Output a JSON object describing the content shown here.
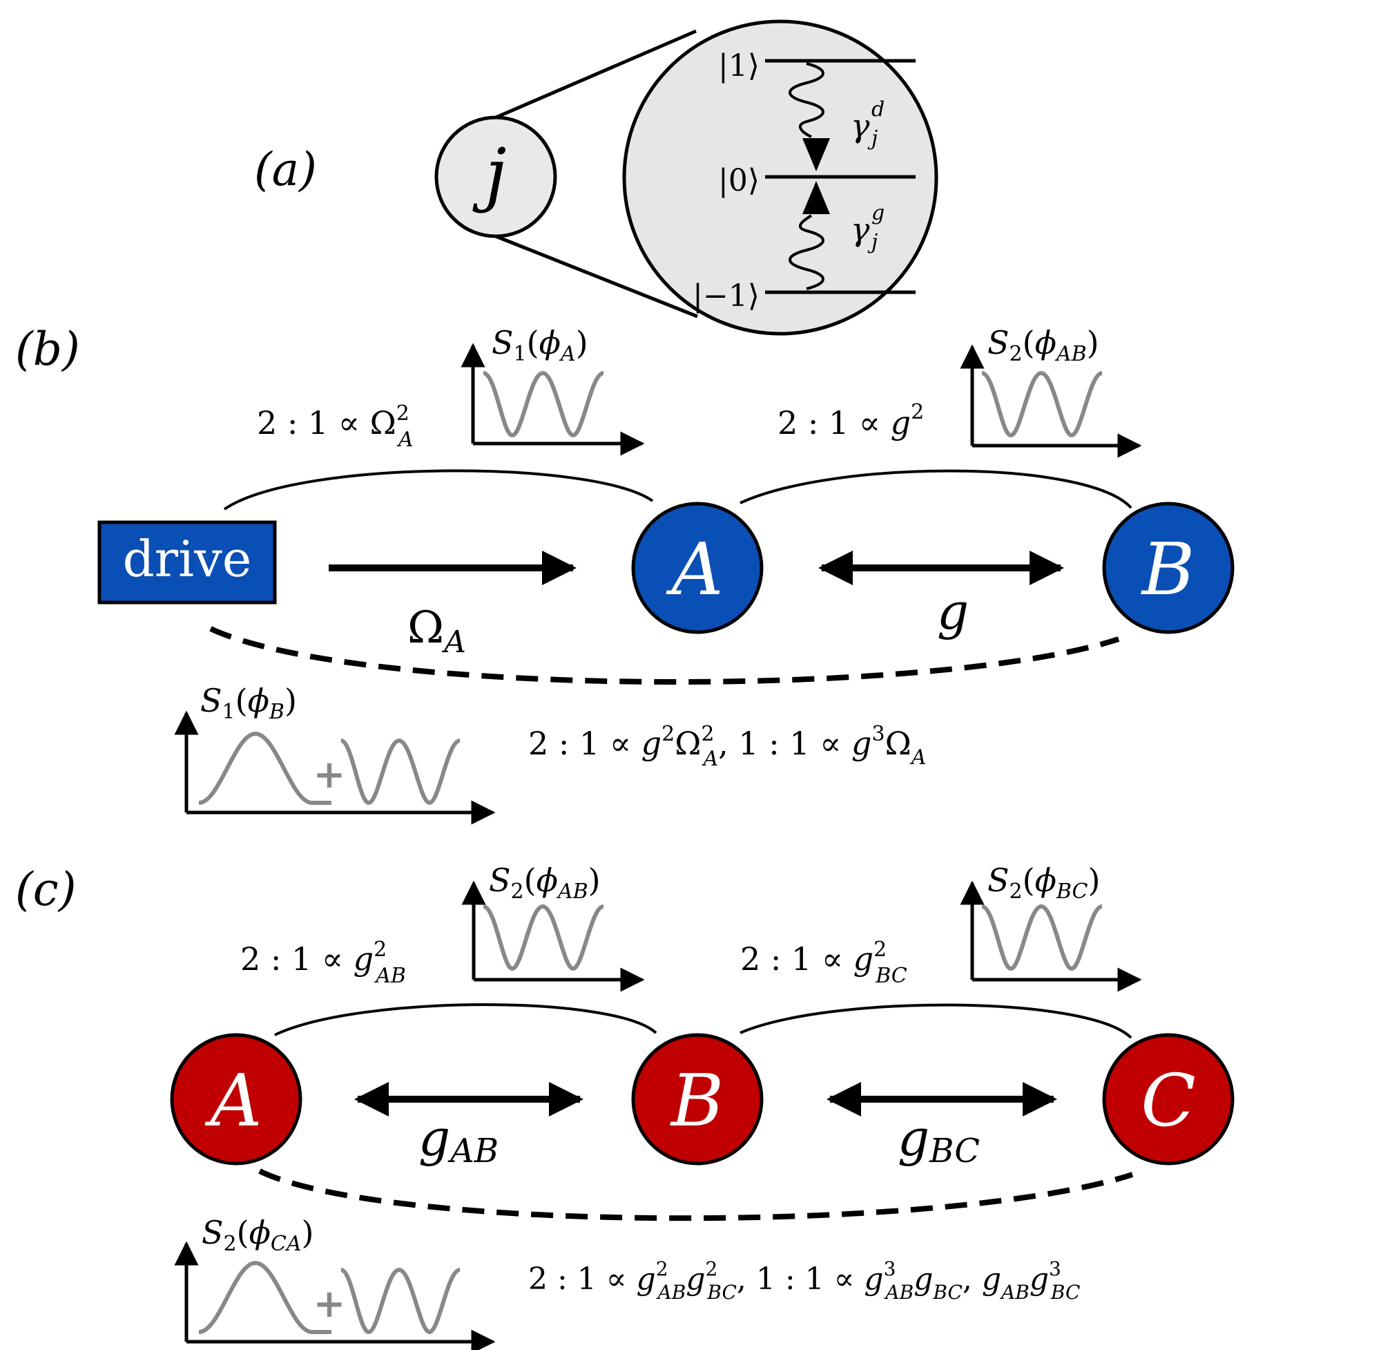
{
  "panel_a": {
    "label": "(a)",
    "site": "j",
    "levels": {
      "top": "|1⟩",
      "mid": "|0⟩",
      "bot": "|−1⟩"
    },
    "decay": {
      "base": "γ",
      "upper_sup": "d",
      "lower_sup": "g",
      "sub": "j"
    }
  },
  "panel_b": {
    "label": "(b)",
    "drive": "drive",
    "node_a": "A",
    "node_b": "B",
    "coupling_omega": {
      "base": "Ω",
      "sub": "A"
    },
    "coupling_g": "g",
    "arc1": {
      "ratio": "2 : 1 ∝ ",
      "base": "Ω",
      "sup": "2",
      "sub": "A"
    },
    "arc2": {
      "ratio": "2 : 1 ∝ ",
      "base": "g",
      "sup": "2"
    },
    "plot1": {
      "s": "S",
      "s_sub": "1",
      "arg": "ϕ",
      "arg_sub": "A"
    },
    "plot2": {
      "s": "S",
      "s_sub": "2",
      "arg": "ϕ",
      "arg_sub": "AB"
    },
    "plot3": {
      "s": "S",
      "s_sub": "1",
      "arg": "ϕ",
      "arg_sub": "B"
    },
    "bottom_text": {
      "p1": "2 : 1 ∝ ",
      "g": "g",
      "g_sup": "2",
      "om": "Ω",
      "om_sup": "2",
      "om_sub": "A",
      "sep": ",   1 : 1 ∝ ",
      "g2": "g",
      "g2_sup": "3",
      "om2": "Ω",
      "om2_sub": "A"
    },
    "plus": "+"
  },
  "panel_c": {
    "label": "(c)",
    "node_a": "A",
    "node_b": "B",
    "node_c": "C",
    "coupling_ab": {
      "base": "g",
      "sub": "AB"
    },
    "coupling_bc": {
      "base": "g",
      "sub": "BC"
    },
    "arc1": {
      "ratio": "2 : 1 ∝ ",
      "base": "g",
      "sup": "2",
      "sub": "AB"
    },
    "arc2": {
      "ratio": "2 : 1 ∝ ",
      "base": "g",
      "sup": "2",
      "sub": "BC"
    },
    "plot1": {
      "s": "S",
      "s_sub": "2",
      "arg": "ϕ",
      "arg_sub": "AB"
    },
    "plot2": {
      "s": "S",
      "s_sub": "2",
      "arg": "ϕ",
      "arg_sub": "BC"
    },
    "plot3": {
      "s": "S",
      "s_sub": "2",
      "arg": "ϕ",
      "arg_sub": "CA"
    },
    "bottom_text": {
      "p1": "2 : 1 ∝ ",
      "t1": "g",
      "t1_sup": "2",
      "t1_sub": "AB",
      "t2": "g",
      "t2_sup": "2",
      "t2_sub": "BC",
      "sep": ",   1 : 1 ∝ ",
      "t3": "g",
      "t3_sup": "3",
      "t3_sub": "AB",
      "t4": "g",
      "t4_sub": "BC",
      "sep2": ",  ",
      "t5": "g",
      "t5_sub": "AB",
      "t6": "g",
      "t6_sup": "3",
      "t6_sub": "BC"
    },
    "plus": "+"
  },
  "colors": {
    "blue": "#0a4fb5",
    "red": "#c00000",
    "gray": "#888888",
    "bubble": "#e6e6e6",
    "site": "#e9e9e9"
  }
}
